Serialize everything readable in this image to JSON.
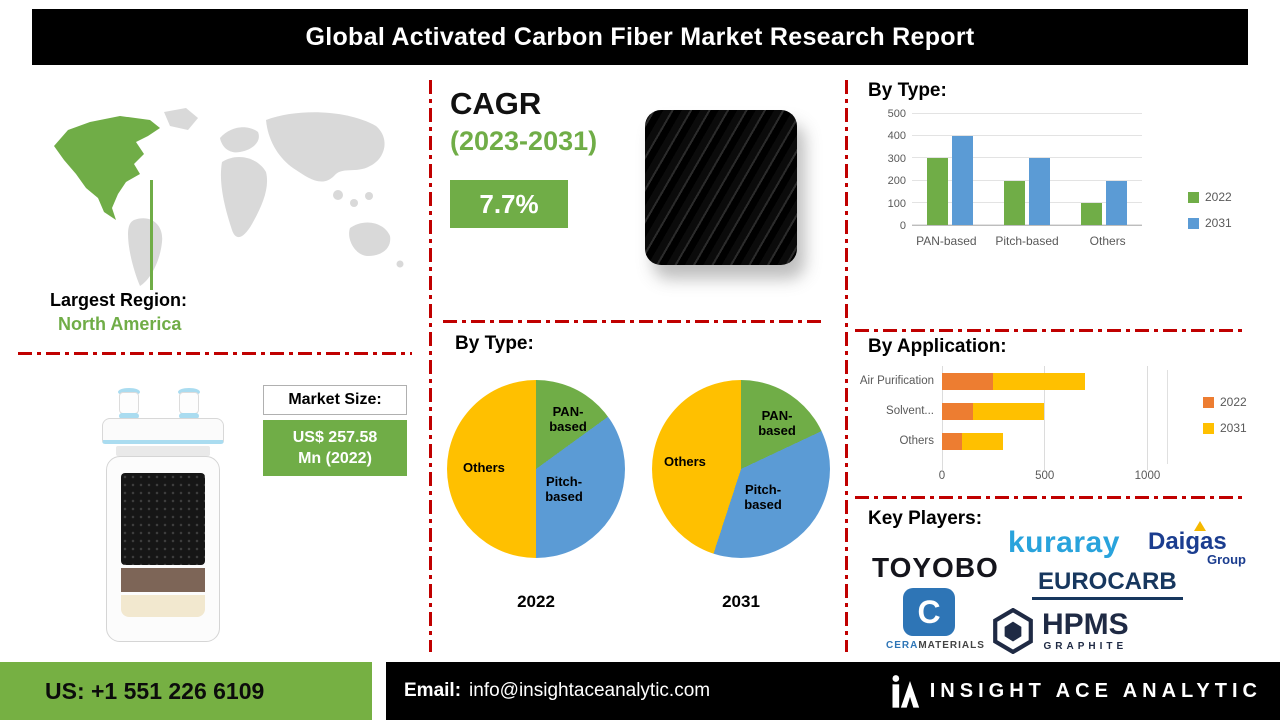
{
  "header": {
    "title": "Global Activated Carbon Fiber Market Research Report"
  },
  "left_panel": {
    "largest_region_label": "Largest Region:",
    "largest_region_value": "North America",
    "market_size_label": "Market Size:",
    "market_size_value_line1": "US$ 257.58",
    "market_size_value_line2": "Mn (2022)"
  },
  "cagr": {
    "label": "CAGR",
    "period": "(2023-2031)",
    "value": "7.7%"
  },
  "chart_data": [
    {
      "type": "bar",
      "title": "By Type:",
      "categories": [
        "PAN-based",
        "Pitch-based",
        "Others"
      ],
      "series": [
        {
          "name": "2022",
          "color": "#70ad47",
          "values": [
            300,
            200,
            100
          ]
        },
        {
          "name": "2031",
          "color": "#5b9bd5",
          "values": [
            400,
            300,
            200
          ]
        }
      ],
      "ylim": [
        0,
        500
      ],
      "yticks": [
        0,
        100,
        200,
        300,
        400,
        500
      ],
      "legend_position": "right",
      "grid": true
    },
    {
      "type": "pie",
      "title": "By Type:",
      "year_label": "2022",
      "labels": [
        "PAN-based",
        "Pitch-based",
        "Others"
      ],
      "values": [
        15,
        35,
        50
      ],
      "colors": [
        "#70ad47",
        "#5b9bd5",
        "#ffc000"
      ]
    },
    {
      "type": "pie",
      "title": "By Type:",
      "year_label": "2031",
      "labels": [
        "PAN-based",
        "Pitch-based",
        "Others"
      ],
      "values": [
        18,
        37,
        45
      ],
      "colors": [
        "#70ad47",
        "#5b9bd5",
        "#ffc000"
      ]
    },
    {
      "type": "bar-horizontal-stacked",
      "title": "By Application:",
      "categories": [
        "Air Purification",
        "Solvent...",
        "Others"
      ],
      "series": [
        {
          "name": "2022",
          "color": "#ed7d31",
          "values": [
            250,
            150,
            100
          ]
        },
        {
          "name": "2031",
          "color": "#ffc000",
          "values": [
            450,
            350,
            200
          ]
        }
      ],
      "xticks": [
        0,
        500,
        1000
      ],
      "xlim": [
        0,
        1100
      ],
      "legend_position": "right",
      "grid": true
    }
  ],
  "key_players": {
    "title": "Key Players:",
    "toyobo": "TOYOBO",
    "kuraray": "kuraray",
    "daigas": "Daigas",
    "daigas_group": "Group",
    "eurocarb": "EUROCARB",
    "cera_icon": "C",
    "cera_part1": "CERA",
    "cera_part2": "MATERIALS",
    "hpms": "HPMS",
    "hpms_sub": "GRAPHITE"
  },
  "footer": {
    "phone": "US: +1 551 226 6109",
    "email_label": "Email:",
    "email": "info@insightaceanalytic.com",
    "brand": "INSIGHT ACE ANALYTIC"
  },
  "colors": {
    "accent_green": "#70ad47",
    "accent_blue": "#5b9bd5",
    "accent_yellow": "#ffc000",
    "accent_orange": "#ed7d31",
    "divider_red": "#c00000",
    "footer_green": "#76b043"
  }
}
